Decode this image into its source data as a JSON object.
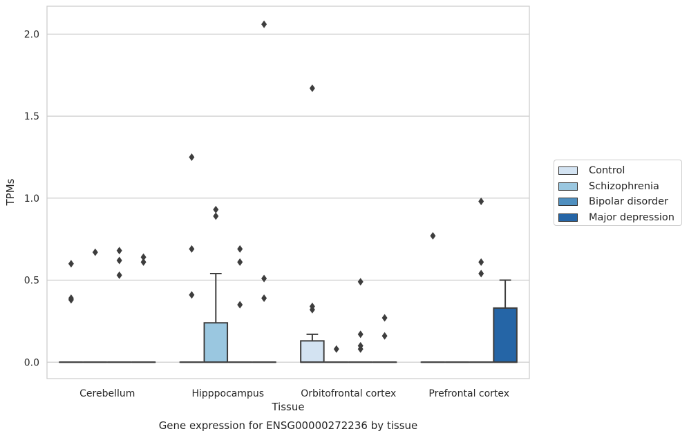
{
  "chart_data": {
    "type": "boxplot",
    "caption": "Gene expression for ENSG00000272236 by tissue",
    "xlabel": "Tissue",
    "ylabel": "TPMs",
    "ylim": [
      -0.1,
      2.17
    ],
    "yticks": [
      0.0,
      0.5,
      1.0,
      1.5,
      2.0
    ],
    "ytick_labels": [
      "0.0",
      "0.5",
      "1.0",
      "1.5",
      "2.0"
    ],
    "grid": "horizontal",
    "legend_position": "right, outside plot",
    "categories": [
      "Cerebellum",
      "Hipppocampus",
      "Orbitofrontal cortex",
      "Prefrontal cortex"
    ],
    "series": [
      {
        "name": "Control",
        "color": "#d3e3f2",
        "boxes": [
          {
            "category": "Cerebellum",
            "q1": 0.0,
            "median": 0.0,
            "q3": 0.0,
            "whisker_low": 0.0,
            "whisker_high": 0.0,
            "outliers": [
              0.38,
              0.39,
              0.6
            ]
          },
          {
            "category": "Hipppocampus",
            "q1": 0.0,
            "median": 0.0,
            "q3": 0.0,
            "whisker_low": 0.0,
            "whisker_high": 0.0,
            "outliers": [
              0.41,
              0.69,
              1.25
            ]
          },
          {
            "category": "Orbitofrontal cortex",
            "q1": 0.0,
            "median": 0.0,
            "q3": 0.13,
            "whisker_low": 0.0,
            "whisker_high": 0.17,
            "outliers": [
              0.32,
              0.34,
              1.67
            ]
          },
          {
            "category": "Prefrontal cortex",
            "q1": 0.0,
            "median": 0.0,
            "q3": 0.0,
            "whisker_low": 0.0,
            "whisker_high": 0.0,
            "outliers": [
              0.77
            ]
          }
        ]
      },
      {
        "name": "Schizophrenia",
        "color": "#9ac7e0",
        "boxes": [
          {
            "category": "Cerebellum",
            "q1": 0.0,
            "median": 0.0,
            "q3": 0.0,
            "whisker_low": 0.0,
            "whisker_high": 0.0,
            "outliers": [
              0.67
            ]
          },
          {
            "category": "Hipppocampus",
            "q1": 0.0,
            "median": 0.0,
            "q3": 0.24,
            "whisker_low": 0.0,
            "whisker_high": 0.54,
            "outliers": [
              0.89,
              0.93
            ]
          },
          {
            "category": "Orbitofrontal cortex",
            "q1": 0.0,
            "median": 0.0,
            "q3": 0.0,
            "whisker_low": 0.0,
            "whisker_high": 0.0,
            "outliers": [
              0.08
            ]
          },
          {
            "category": "Prefrontal cortex",
            "q1": 0.0,
            "median": 0.0,
            "q3": 0.0,
            "whisker_low": 0.0,
            "whisker_high": 0.0,
            "outliers": []
          }
        ]
      },
      {
        "name": "Bipolar disorder",
        "color": "#4f8fbf",
        "boxes": [
          {
            "category": "Cerebellum",
            "q1": 0.0,
            "median": 0.0,
            "q3": 0.0,
            "whisker_low": 0.0,
            "whisker_high": 0.0,
            "outliers": [
              0.53,
              0.62,
              0.68
            ]
          },
          {
            "category": "Hipppocampus",
            "q1": 0.0,
            "median": 0.0,
            "q3": 0.0,
            "whisker_low": 0.0,
            "whisker_high": 0.0,
            "outliers": [
              0.35,
              0.61,
              0.69
            ]
          },
          {
            "category": "Orbitofrontal cortex",
            "q1": 0.0,
            "median": 0.0,
            "q3": 0.0,
            "whisker_low": 0.0,
            "whisker_high": 0.0,
            "outliers": [
              0.08,
              0.1,
              0.17,
              0.49
            ]
          },
          {
            "category": "Prefrontal cortex",
            "q1": 0.0,
            "median": 0.0,
            "q3": 0.0,
            "whisker_low": 0.0,
            "whisker_high": 0.0,
            "outliers": [
              0.54,
              0.61,
              0.98
            ]
          }
        ]
      },
      {
        "name": "Major depression",
        "color": "#2565a6",
        "boxes": [
          {
            "category": "Cerebellum",
            "q1": 0.0,
            "median": 0.0,
            "q3": 0.0,
            "whisker_low": 0.0,
            "whisker_high": 0.0,
            "outliers": [
              0.61,
              0.64
            ]
          },
          {
            "category": "Hipppocampus",
            "q1": 0.0,
            "median": 0.0,
            "q3": 0.0,
            "whisker_low": 0.0,
            "whisker_high": 0.0,
            "outliers": [
              0.39,
              0.51,
              2.06
            ]
          },
          {
            "category": "Orbitofrontal cortex",
            "q1": 0.0,
            "median": 0.0,
            "q3": 0.0,
            "whisker_low": 0.0,
            "whisker_high": 0.0,
            "outliers": [
              0.16,
              0.27
            ]
          },
          {
            "category": "Prefrontal cortex",
            "q1": 0.0,
            "median": 0.0,
            "q3": 0.33,
            "whisker_low": 0.0,
            "whisker_high": 0.5,
            "outliers": []
          }
        ]
      }
    ]
  }
}
